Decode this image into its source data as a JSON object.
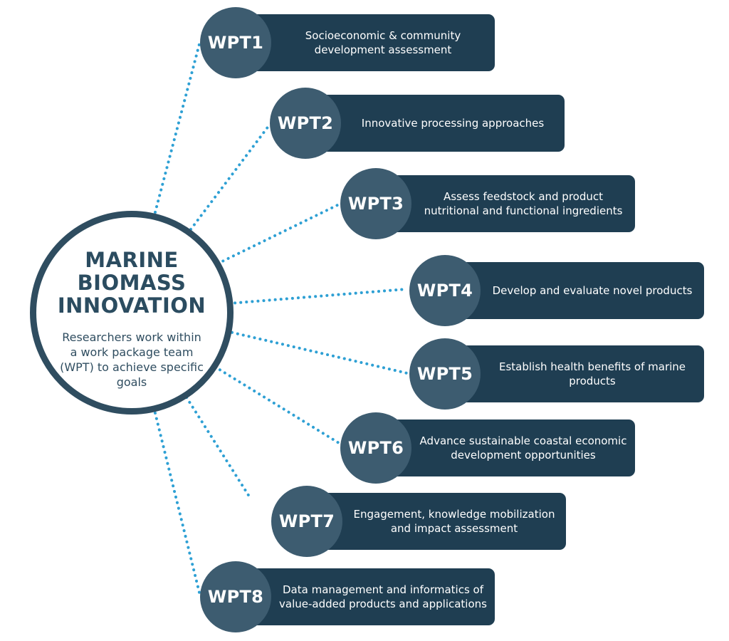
{
  "colors": {
    "hub_border": "#2f4d60",
    "hub_text": "#2b4c60",
    "badge": "#3d5c70",
    "box": "#1f3e52",
    "connector": "#2ea0d4",
    "text_light": "#ffffff"
  },
  "hub": {
    "title_lines": [
      "MARINE",
      "BIOMASS",
      "INNOVATION"
    ],
    "subtitle": "Researchers work within a work package team (WPT) to achieve specific goals"
  },
  "work_packages": [
    {
      "label": "WPT1",
      "description": "Socioeconomic & community development assessment"
    },
    {
      "label": "WPT2",
      "description": "Innovative processing approaches"
    },
    {
      "label": "WPT3",
      "description": "Assess feedstock and product nutritional and functional ingredients"
    },
    {
      "label": "WPT4",
      "description": "Develop and evaluate novel products"
    },
    {
      "label": "WPT5",
      "description": "Establish health benefits of marine products"
    },
    {
      "label": "WPT6",
      "description": "Advance sustainable coastal economic development opportunities"
    },
    {
      "label": "WPT7",
      "description": "Engagement, knowledge mobilization and impact assessment"
    },
    {
      "label": "WPT8",
      "description": "Data management and informatics of value-added products and applications"
    }
  ]
}
